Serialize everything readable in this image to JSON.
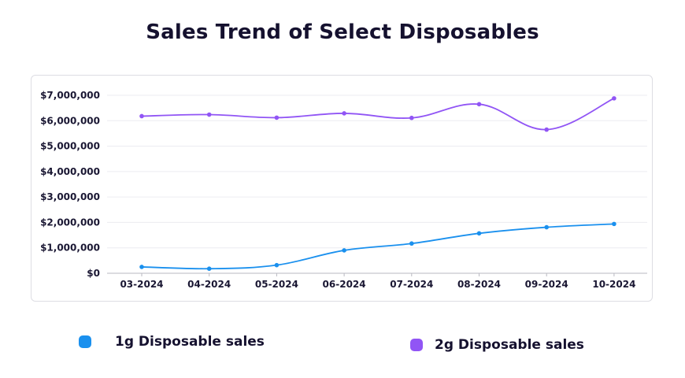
{
  "chart_data": {
    "type": "line",
    "title": "Sales Trend of Select Disposables",
    "categories": [
      "03-2024",
      "04-2024",
      "05-2024",
      "06-2024",
      "07-2024",
      "08-2024",
      "09-2024",
      "10-2024"
    ],
    "y_ticks": [
      "$0",
      "$1,000,000",
      "$2,000,000",
      "$3,000,000",
      "$4,000,000",
      "$5,000,000",
      "$6,000,000",
      "$7,000,000"
    ],
    "ylim": [
      0,
      7000000
    ],
    "grid": true,
    "legend_position": "bottom",
    "series": [
      {
        "name": "1g Disposable sales",
        "color": "#1a90ee",
        "values": [
          250000,
          180000,
          320000,
          900000,
          1170000,
          1570000,
          1810000,
          1940000
        ]
      },
      {
        "name": "2g Disposable sales",
        "color": "#9155f5",
        "values": [
          6180000,
          6240000,
          6120000,
          6290000,
          6110000,
          6650000,
          5650000,
          6880000
        ]
      }
    ]
  }
}
